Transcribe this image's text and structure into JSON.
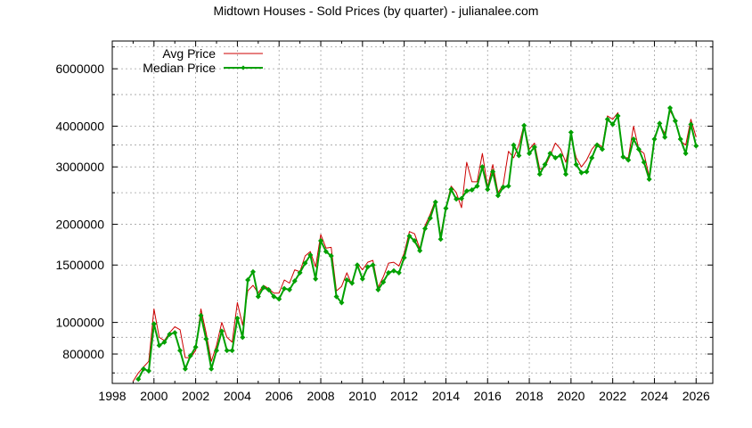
{
  "chart_data": {
    "type": "line",
    "title": "Midtown Houses - Sold Prices (by quarter) - julianalee.com",
    "xlabel": "",
    "ylabel": "",
    "xlim": [
      1998,
      2026.8
    ],
    "ylim": [
      650000,
      7300000
    ],
    "yscale": "log",
    "grid": true,
    "legend_position": "top-left",
    "x_ticks": [
      1998,
      2000,
      2002,
      2004,
      2006,
      2008,
      2010,
      2012,
      2014,
      2016,
      2018,
      2020,
      2022,
      2024,
      2026
    ],
    "y_ticks": [
      800000,
      1000000,
      1500000,
      2000000,
      3000000,
      4000000,
      6000000
    ],
    "x_tick_labels": [
      "1998",
      "2000",
      "2002",
      "2004",
      "2006",
      "2008",
      "2010",
      "2012",
      "2014",
      "2016",
      "2018",
      "2020",
      "2022",
      "2024",
      "2026"
    ],
    "y_tick_labels": [
      "800000",
      "1000000",
      "1500000",
      "2000000",
      "3000000",
      "4000000",
      "6000000"
    ],
    "x": [
      1999.0,
      1999.25,
      1999.5,
      1999.75,
      2000.0,
      2000.25,
      2000.5,
      2000.75,
      2001.0,
      2001.25,
      2001.5,
      2001.75,
      2002.0,
      2002.25,
      2002.5,
      2002.75,
      2003.0,
      2003.25,
      2003.5,
      2003.75,
      2004.0,
      2004.25,
      2004.5,
      2004.75,
      2005.0,
      2005.25,
      2005.5,
      2005.75,
      2006.0,
      2006.25,
      2006.5,
      2006.75,
      2007.0,
      2007.25,
      2007.5,
      2007.75,
      2008.0,
      2008.25,
      2008.5,
      2008.75,
      2009.0,
      2009.25,
      2009.5,
      2009.75,
      2010.0,
      2010.25,
      2010.5,
      2010.75,
      2011.0,
      2011.25,
      2011.5,
      2011.75,
      2012.0,
      2012.25,
      2012.5,
      2012.75,
      2013.0,
      2013.25,
      2013.5,
      2013.75,
      2014.0,
      2014.25,
      2014.5,
      2014.75,
      2015.0,
      2015.25,
      2015.5,
      2015.75,
      2016.0,
      2016.25,
      2016.5,
      2016.75,
      2017.0,
      2017.25,
      2017.5,
      2017.75,
      2018.0,
      2018.25,
      2018.5,
      2018.75,
      2019.0,
      2019.25,
      2019.5,
      2019.75,
      2020.0,
      2020.25,
      2020.5,
      2020.75,
      2021.0,
      2021.25,
      2021.5,
      2021.75,
      2022.0,
      2022.25,
      2022.5,
      2022.75,
      2023.0,
      2023.25,
      2023.5,
      2023.75,
      2024.0,
      2024.25,
      2024.5,
      2024.75,
      2025.0,
      2025.25,
      2025.5,
      2025.75,
      2026.0
    ],
    "series": [
      {
        "name": "Avg Price",
        "color": "#cc0000",
        "marker": "none",
        "values": [
          660000,
          700000,
          730000,
          760000,
          1100000,
          900000,
          880000,
          930000,
          970000,
          950000,
          780000,
          780000,
          820000,
          1100000,
          930000,
          760000,
          850000,
          1000000,
          900000,
          870000,
          1150000,
          980000,
          1250000,
          1300000,
          1230000,
          1300000,
          1270000,
          1230000,
          1230000,
          1350000,
          1320000,
          1450000,
          1430000,
          1600000,
          1650000,
          1480000,
          1860000,
          1690000,
          1700000,
          1250000,
          1290000,
          1420000,
          1300000,
          1520000,
          1450000,
          1530000,
          1550000,
          1280000,
          1380000,
          1520000,
          1530000,
          1490000,
          1630000,
          1900000,
          1870000,
          1680000,
          1980000,
          2150000,
          2370000,
          1850000,
          2250000,
          2620000,
          2500000,
          2250000,
          3100000,
          2700000,
          2700000,
          3300000,
          2600000,
          3050000,
          2500000,
          2650000,
          3350000,
          3200000,
          3500000,
          4050000,
          3400000,
          3550000,
          2950000,
          3000000,
          3250000,
          3550000,
          3400000,
          3100000,
          3700000,
          3200000,
          3000000,
          3150000,
          3400000,
          3550000,
          3450000,
          4300000,
          4200000,
          4400000,
          3200000,
          3200000,
          4000000,
          3400000,
          3300000,
          2800000,
          3700000,
          4050000,
          3800000,
          4450000,
          4200000,
          3600000,
          3500000,
          4200000,
          3700000
        ]
      },
      {
        "name": "Median Price",
        "color": "#00a000",
        "marker": "diamond",
        "values": [
          null,
          670000,
          720000,
          710000,
          990000,
          850000,
          870000,
          920000,
          930000,
          820000,
          720000,
          790000,
          840000,
          1050000,
          890000,
          720000,
          820000,
          940000,
          820000,
          820000,
          1030000,
          900000,
          1350000,
          1430000,
          1200000,
          1280000,
          1260000,
          1200000,
          1180000,
          1270000,
          1260000,
          1340000,
          1420000,
          1520000,
          1610000,
          1360000,
          1780000,
          1650000,
          1600000,
          1200000,
          1150000,
          1350000,
          1320000,
          1500000,
          1360000,
          1480000,
          1500000,
          1260000,
          1330000,
          1420000,
          1440000,
          1420000,
          1580000,
          1840000,
          1780000,
          1660000,
          1940000,
          2090000,
          2340000,
          1800000,
          2240000,
          2560000,
          2390000,
          2400000,
          2530000,
          2550000,
          2620000,
          3000000,
          2560000,
          2900000,
          2450000,
          2600000,
          2620000,
          3500000,
          3250000,
          4020000,
          3300000,
          3450000,
          2850000,
          3050000,
          3300000,
          3200000,
          3250000,
          2850000,
          3830000,
          3050000,
          2880000,
          2900000,
          3200000,
          3500000,
          3400000,
          4200000,
          4050000,
          4300000,
          3220000,
          3150000,
          3650000,
          3400000,
          3100000,
          2750000,
          3650000,
          4080000,
          3700000,
          4550000,
          4150000,
          3650000,
          3300000,
          4050000,
          3480000
        ]
      }
    ]
  }
}
